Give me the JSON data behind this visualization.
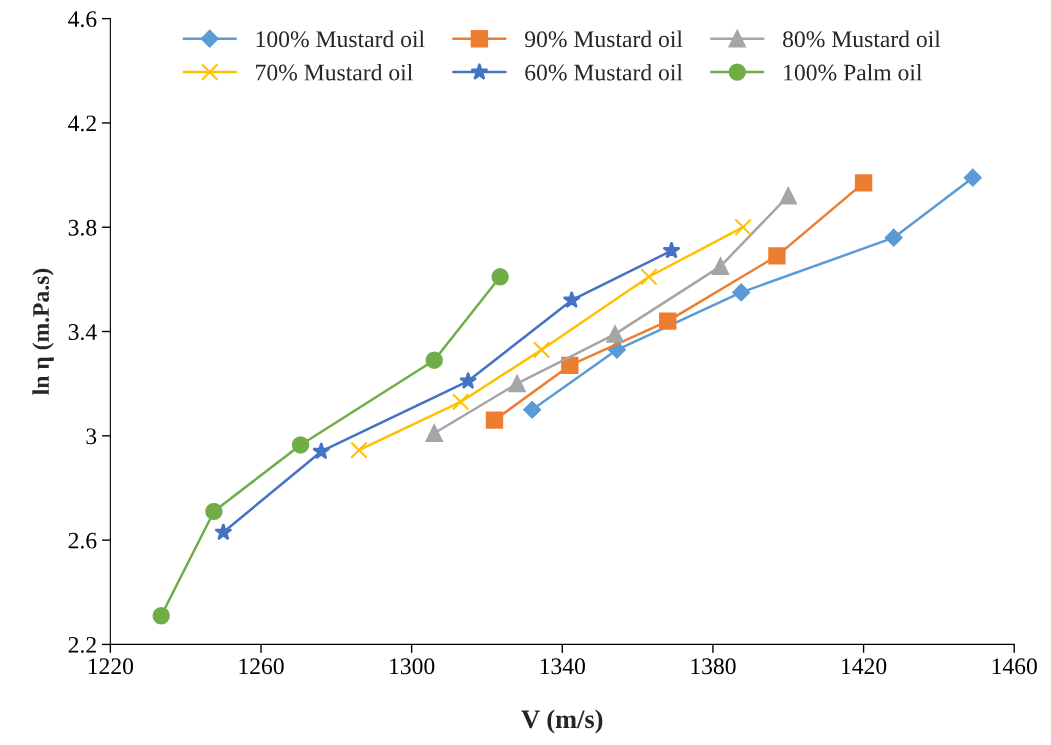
{
  "chart_data": {
    "type": "line",
    "xlabel": "V (m/s)",
    "ylabel": "ln η (m.Pa.s)",
    "xlim": [
      1220,
      1460
    ],
    "xticks": [
      1220,
      1260,
      1300,
      1340,
      1380,
      1420,
      1460
    ],
    "ylim": [
      2.2,
      4.6
    ],
    "yticks": [
      2.2,
      2.6,
      3,
      3.4,
      3.8,
      4.2,
      4.6
    ],
    "grid": false,
    "legend": "top",
    "series": [
      {
        "name": "100% Mustard oil",
        "color": "#5b9bd5",
        "marker": "diamond",
        "x": [
          1332,
          1354.5,
          1387.5,
          1428,
          1449
        ],
        "values": [
          3.1,
          3.33,
          3.55,
          3.76,
          3.99
        ]
      },
      {
        "name": "90% Mustard oil",
        "color": "#ed7d31",
        "marker": "square",
        "x": [
          1322,
          1342,
          1368,
          1397,
          1420
        ],
        "values": [
          3.06,
          3.27,
          3.44,
          3.69,
          3.97
        ]
      },
      {
        "name": "80% Mustard oil",
        "color": "#a5a5a5",
        "marker": "triangle",
        "x": [
          1306,
          1328,
          1354,
          1382,
          1400
        ],
        "values": [
          3.01,
          3.2,
          3.39,
          3.65,
          3.92
        ]
      },
      {
        "name": "70% Mustard oil",
        "color": "#ffc000",
        "marker": "cross",
        "x": [
          1286,
          1313,
          1334.5,
          1363,
          1388
        ],
        "values": [
          2.945,
          3.13,
          3.33,
          3.61,
          3.8
        ]
      },
      {
        "name": "60% Mustard oil",
        "color": "#4472c4",
        "marker": "star",
        "x": [
          1250,
          1276,
          1315,
          1342.5,
          1369
        ],
        "values": [
          2.63,
          2.94,
          3.21,
          3.52,
          3.71
        ]
      },
      {
        "name": "100% Palm oil",
        "color": "#70ad47",
        "marker": "circle",
        "x": [
          1233.5,
          1247.5,
          1270.5,
          1306,
          1323.5
        ],
        "values": [
          2.31,
          2.71,
          2.965,
          3.29,
          3.61
        ]
      }
    ]
  }
}
